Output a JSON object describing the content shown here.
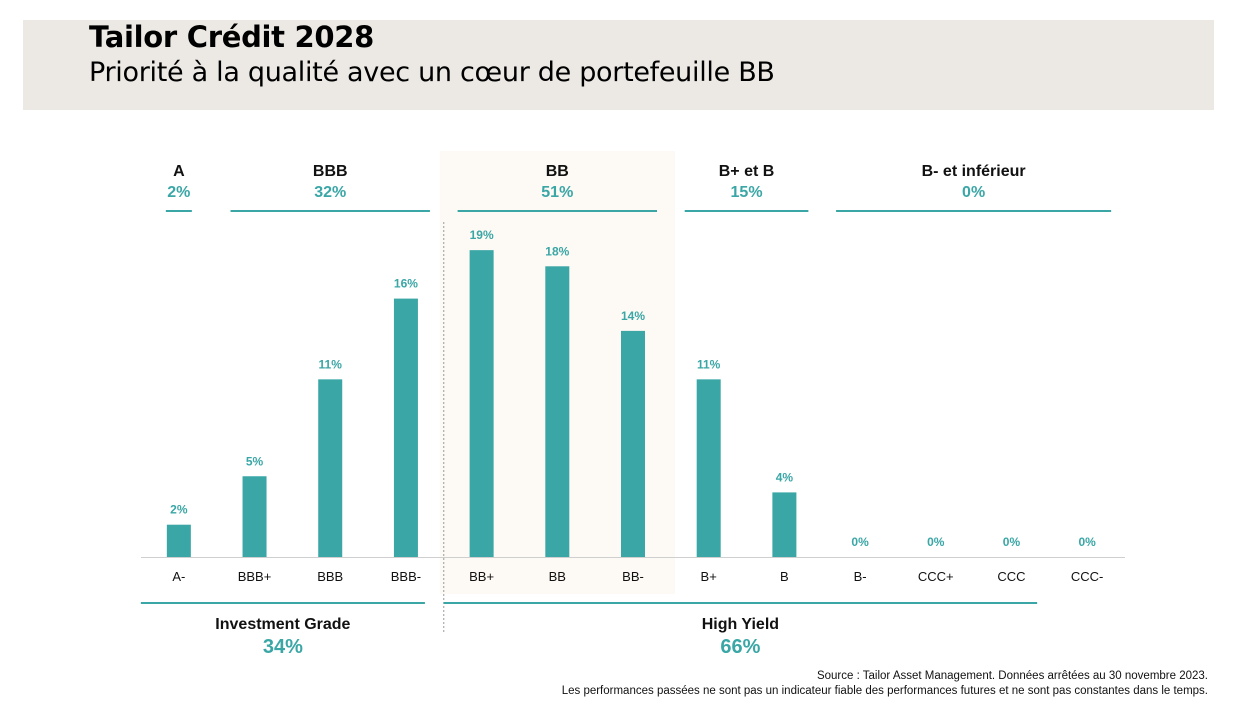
{
  "header": {
    "title": "Tailor Crédit 2028",
    "subtitle": "Priorité à la qualité avec un cœur de portefeuille BB"
  },
  "colors": {
    "accent": "#3aa6a6",
    "header_bg": "#ece9e5",
    "highlight_bg": "#fdf9f4"
  },
  "chart_data": {
    "type": "bar",
    "categories": [
      "A-",
      "BBB+",
      "BBB",
      "BBB-",
      "BB+",
      "BB",
      "BB-",
      "B+",
      "B",
      "B-",
      "CCC+",
      "CCC",
      "CCC-"
    ],
    "values": [
      2,
      5,
      11,
      16,
      19,
      18,
      14,
      11,
      4,
      0,
      0,
      0,
      0
    ],
    "value_labels": [
      "2%",
      "5%",
      "11%",
      "16%",
      "19%",
      "18%",
      "14%",
      "11%",
      "4%",
      "0%",
      "0%",
      "0%",
      "0%"
    ],
    "unit": "%",
    "ylim": [
      0,
      20
    ],
    "grid": false,
    "highlighted_group": "BB",
    "rating_groups": [
      {
        "name": "A",
        "pct": "2%",
        "categories": [
          "A-"
        ]
      },
      {
        "name": "BBB",
        "pct": "32%",
        "categories": [
          "BBB+",
          "BBB",
          "BBB-"
        ]
      },
      {
        "name": "BB",
        "pct": "51%",
        "categories": [
          "BB+",
          "BB",
          "BB-"
        ]
      },
      {
        "name": "B+ et B",
        "pct": "15%",
        "categories": [
          "B+",
          "B"
        ]
      },
      {
        "name": "B- et inférieur",
        "pct": "0%",
        "categories": [
          "B-",
          "CCC+",
          "CCC",
          "CCC-"
        ]
      }
    ],
    "segments": [
      {
        "name": "Investment Grade",
        "pct": "34%",
        "categories": [
          "A-",
          "BBB+",
          "BBB",
          "BBB-"
        ]
      },
      {
        "name": "High Yield",
        "pct": "66%",
        "categories": [
          "BB+",
          "BB",
          "BB-",
          "B+",
          "B",
          "B-",
          "CCC+",
          "CCC",
          "CCC-"
        ]
      }
    ]
  },
  "footnote": {
    "line1": "Source : Tailor Asset Management. Données arrêtées au 30 novembre 2023.",
    "line2": "Les performances passées ne sont pas un indicateur fiable des performances futures et ne sont pas constantes dans le temps."
  }
}
